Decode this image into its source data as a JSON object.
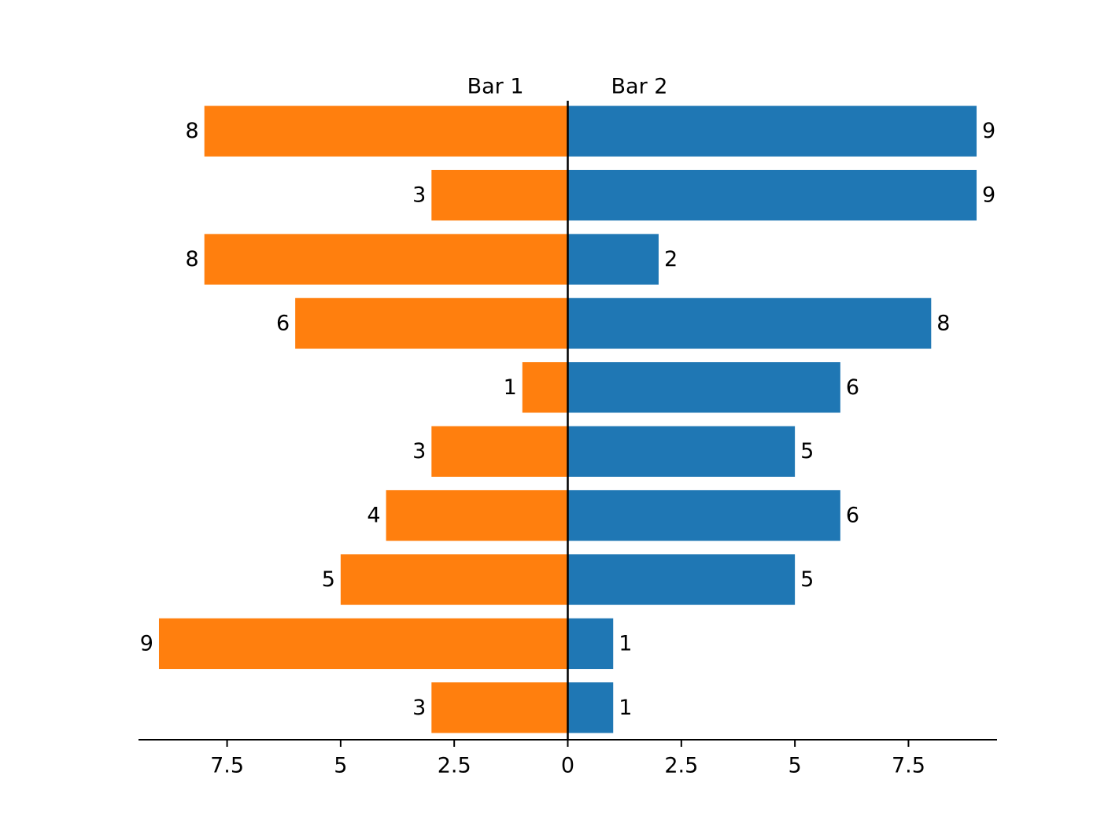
{
  "chart_data": {
    "type": "butterfly-bar",
    "categories": [
      null,
      null,
      null,
      null,
      null,
      null,
      null,
      null,
      null,
      null
    ],
    "series": [
      {
        "name": "Bar 1",
        "color": "#ff7f0e",
        "values": [
          -8,
          -3,
          -8,
          -6,
          -1,
          -3,
          -4,
          -5,
          -9,
          -3
        ],
        "value_labels": [
          "8",
          "3",
          "8",
          "6",
          "1",
          "3",
          "4",
          "5",
          "9",
          "3"
        ]
      },
      {
        "name": "Bar 2",
        "color": "#1f77b4",
        "values": [
          9,
          9,
          2,
          8,
          6,
          5,
          6,
          5,
          1,
          1
        ]
      }
    ],
    "xlim": [
      -9.45,
      9.45
    ],
    "xticks": [
      {
        "value": -7.5,
        "label": "7.5"
      },
      {
        "value": -5,
        "label": "5"
      },
      {
        "value": -2.5,
        "label": "2.5"
      },
      0,
      2.5,
      5,
      7.5
    ]
  }
}
